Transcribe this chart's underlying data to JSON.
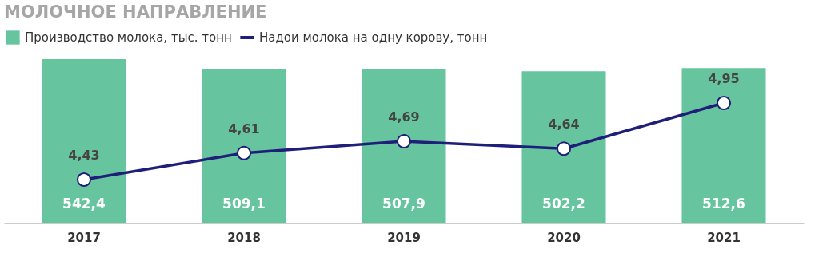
{
  "chart_data": {
    "type": "bar",
    "title": "МОЛОЧНОЕ НАПРАВЛЕНИЕ",
    "categories": [
      "2017",
      "2018",
      "2019",
      "2020",
      "2021"
    ],
    "series": [
      {
        "name": "Производство молока, тыс. тонн",
        "color": "#66c49e",
        "values": [
          542.4,
          509.1,
          507.9,
          502.2,
          512.6
        ],
        "value_labels": [
          "542,4",
          "509,1",
          "507,9",
          "502,2",
          "512,6"
        ]
      },
      {
        "name": "Надои молока на одну корову, тонн",
        "type": "line",
        "axis": "y2",
        "color": "#1f1f7a",
        "values": [
          4.43,
          4.61,
          4.69,
          4.64,
          4.95
        ],
        "value_labels": [
          "4,43",
          "4,61",
          "4,69",
          "4,64",
          "4,95"
        ]
      }
    ],
    "tick_labels": "x",
    "legend": "top",
    "marker": "circle"
  }
}
